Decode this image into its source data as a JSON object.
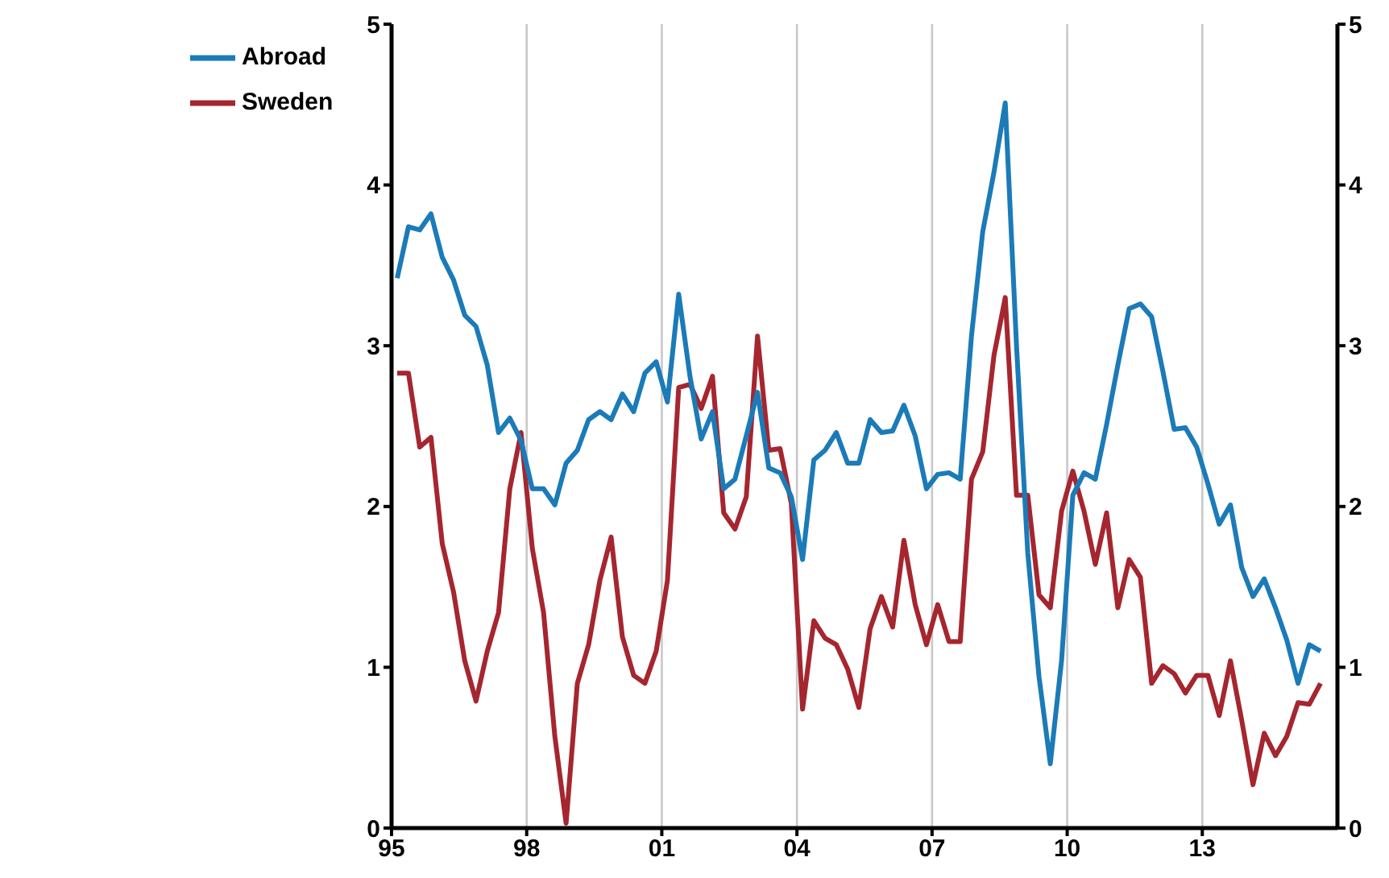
{
  "chart_data": {
    "type": "line",
    "x": [
      1995.125,
      1995.375,
      1995.625,
      1995.875,
      1996.125,
      1996.375,
      1996.625,
      1996.875,
      1997.125,
      1997.375,
      1997.625,
      1997.875,
      1998.125,
      1998.375,
      1998.625,
      1998.875,
      1999.125,
      1999.375,
      1999.625,
      1999.875,
      2000.125,
      2000.375,
      2000.625,
      2000.875,
      2001.125,
      2001.375,
      2001.625,
      2001.875,
      2002.125,
      2002.375,
      2002.625,
      2002.875,
      2003.125,
      2003.375,
      2003.625,
      2003.875,
      2004.125,
      2004.375,
      2004.625,
      2004.875,
      2005.125,
      2005.375,
      2005.625,
      2005.875,
      2006.125,
      2006.375,
      2006.625,
      2006.875,
      2007.125,
      2007.375,
      2007.625,
      2007.875,
      2008.125,
      2008.375,
      2008.625,
      2008.875,
      2009.125,
      2009.375,
      2009.625,
      2009.875,
      2010.125,
      2010.375,
      2010.625,
      2010.875,
      2011.125,
      2011.375,
      2011.625,
      2011.875,
      2012.125,
      2012.375,
      2012.625,
      2012.875,
      2013.125,
      2013.375,
      2013.625,
      2013.875,
      2014.125,
      2014.375,
      2014.625,
      2014.875,
      2015.125,
      2015.375,
      2015.625
    ],
    "series": [
      {
        "name": "Sweden",
        "color": "#a5262f",
        "values": [
          2.83,
          2.83,
          2.37,
          2.43,
          1.77,
          1.47,
          1.04,
          0.79,
          1.1,
          1.34,
          2.11,
          2.46,
          1.74,
          1.34,
          0.57,
          0.03,
          0.9,
          1.14,
          1.54,
          1.81,
          1.19,
          0.95,
          0.9,
          1.1,
          1.54,
          2.74,
          2.76,
          2.61,
          2.81,
          1.96,
          1.86,
          2.06,
          3.06,
          2.35,
          2.36,
          2.02,
          0.74,
          1.29,
          1.18,
          1.14,
          0.99,
          0.75,
          1.24,
          1.44,
          1.25,
          1.79,
          1.39,
          1.14,
          1.39,
          1.16,
          1.16,
          2.17,
          2.34,
          2.94,
          3.3,
          2.07,
          2.07,
          1.45,
          1.37,
          1.97,
          2.22,
          1.97,
          1.64,
          1.96,
          1.37,
          1.67,
          1.56,
          0.9,
          1.01,
          0.96,
          0.84,
          0.95,
          0.95,
          0.7,
          1.04,
          0.67,
          0.27,
          0.59,
          0.45,
          0.57,
          0.78,
          0.77,
          0.9
        ]
      },
      {
        "name": "Abroad",
        "color": "#1b7bb8",
        "values": [
          3.42,
          3.74,
          3.72,
          3.82,
          3.55,
          3.41,
          3.19,
          3.12,
          2.88,
          2.46,
          2.55,
          2.41,
          2.11,
          2.11,
          2.01,
          2.27,
          2.35,
          2.54,
          2.59,
          2.54,
          2.7,
          2.59,
          2.83,
          2.9,
          2.65,
          3.32,
          2.81,
          2.42,
          2.59,
          2.11,
          2.17,
          2.44,
          2.71,
          2.24,
          2.21,
          2.06,
          1.67,
          2.29,
          2.35,
          2.46,
          2.27,
          2.27,
          2.54,
          2.46,
          2.47,
          2.63,
          2.44,
          2.11,
          2.2,
          2.21,
          2.17,
          3.06,
          3.71,
          4.08,
          4.51,
          3.0,
          1.71,
          0.94,
          0.4,
          1.04,
          2.07,
          2.21,
          2.17,
          2.51,
          2.88,
          3.23,
          3.26,
          3.18,
          2.84,
          2.48,
          2.49,
          2.37,
          2.14,
          1.89,
          2.01,
          1.62,
          1.44,
          1.55,
          1.37,
          1.17,
          0.9,
          1.14,
          1.1
        ]
      }
    ],
    "xlim": [
      1995,
      2016
    ],
    "xticks": [
      {
        "value": 1995,
        "label": "95"
      },
      {
        "value": 1998,
        "label": "98"
      },
      {
        "value": 2001,
        "label": "01"
      },
      {
        "value": 2004,
        "label": "04"
      },
      {
        "value": 2007,
        "label": "07"
      },
      {
        "value": 2010,
        "label": "10"
      },
      {
        "value": 2013,
        "label": "13"
      }
    ],
    "ylim": [
      0,
      5
    ],
    "yticks": [
      0,
      1,
      2,
      3,
      4,
      5
    ],
    "y2lim": [
      0,
      5
    ],
    "y2ticks": [
      0,
      1,
      2,
      3,
      4,
      5
    ],
    "grid": true,
    "legend": "top left",
    "marker": "none",
    "line_style": "solid"
  }
}
